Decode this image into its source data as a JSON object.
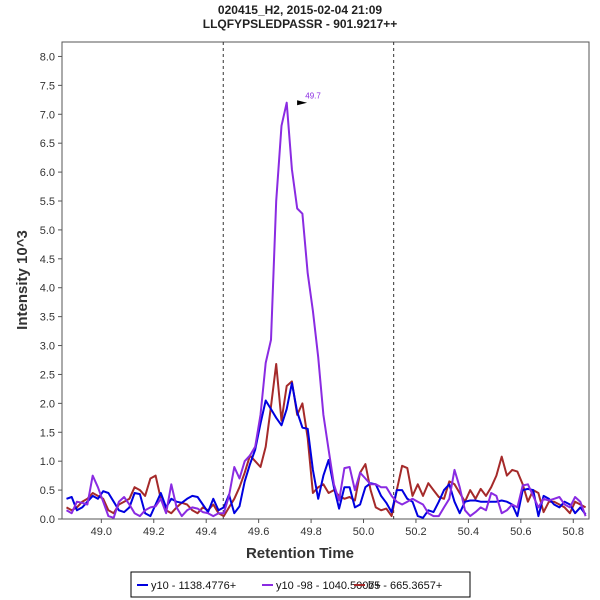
{
  "chart_data": {
    "type": "line",
    "title": "020415_H2, 2015-02-04 21:09",
    "subtitle": "LLQFYPSLEDPASSR - 901.9217++",
    "xlabel": "Retention Time",
    "ylabel": "Intensity 10^3",
    "xlim": [
      48.85,
      50.86
    ],
    "ylim": [
      0,
      8.25
    ],
    "x_ticks": [
      "49.0",
      "49.2",
      "49.4",
      "49.6",
      "49.8",
      "50.0",
      "50.2",
      "50.4",
      "50.6",
      "50.8"
    ],
    "y_ticks": [
      "0.0",
      "0.5",
      "1.0",
      "1.5",
      "2.0",
      "2.5",
      "3.0",
      "3.5",
      "4.0",
      "4.5",
      "5.0",
      "5.5",
      "6.0",
      "6.5",
      "7.0",
      "7.5",
      "8.0"
    ],
    "boundaries": [
      49.465,
      50.115
    ],
    "grid": false,
    "legend_position": "bottom",
    "peak_annotation": {
      "label": "49.7",
      "x": 49.8,
      "y": 7.2,
      "color": "#8a2be2"
    },
    "series": [
      {
        "name": "y10 - 1138.4776+",
        "color": "#0000e0",
        "x": [
          48.867,
          48.887,
          48.907,
          48.927,
          48.947,
          48.967,
          48.987,
          49.007,
          49.027,
          49.047,
          49.067,
          49.087,
          49.107,
          49.127,
          49.147,
          49.167,
          49.187,
          49.207,
          49.227,
          49.247,
          49.267,
          49.287,
          49.307,
          49.327,
          49.347,
          49.367,
          49.387,
          49.407,
          49.427,
          49.447,
          49.467,
          49.487,
          49.507,
          49.527,
          49.547,
          49.567,
          49.587,
          49.607,
          49.627,
          49.647,
          49.667,
          49.687,
          49.707,
          49.727,
          49.747,
          49.767,
          49.787,
          49.807,
          49.827,
          49.847,
          49.867,
          49.887,
          49.907,
          49.927,
          49.947,
          49.967,
          49.987,
          50.007,
          50.027,
          50.047,
          50.067,
          50.087,
          50.107,
          50.127,
          50.147,
          50.167,
          50.187,
          50.207,
          50.227,
          50.247,
          50.267,
          50.287,
          50.307,
          50.327,
          50.347,
          50.367,
          50.387,
          50.407,
          50.427,
          50.447,
          50.467,
          50.487,
          50.507,
          50.527,
          50.547,
          50.567,
          50.587,
          50.607,
          50.627,
          50.647,
          50.667,
          50.687,
          50.707,
          50.727,
          50.747,
          50.767,
          50.787,
          50.807,
          50.827,
          50.847
        ],
        "values": [
          0.35,
          0.38,
          0.15,
          0.2,
          0.3,
          0.4,
          0.35,
          0.48,
          0.45,
          0.3,
          0.15,
          0.12,
          0.2,
          0.45,
          0.43,
          0.1,
          0.05,
          0.25,
          0.45,
          0.2,
          0.35,
          0.3,
          0.28,
          0.35,
          0.4,
          0.38,
          0.25,
          0.12,
          0.35,
          0.15,
          0.2,
          0.42,
          0.1,
          0.22,
          0.65,
          0.95,
          1.2,
          1.65,
          2.05,
          1.9,
          1.75,
          1.62,
          1.9,
          2.35,
          1.85,
          1.58,
          1.56,
          0.85,
          0.35,
          0.75,
          1.02,
          0.55,
          0.18,
          0.55,
          0.55,
          0.2,
          0.25,
          0.55,
          0.62,
          0.6,
          0.4,
          0.28,
          0.12,
          0.5,
          0.5,
          0.35,
          0.3,
          0.05,
          0.02,
          0.15,
          0.12,
          0.3,
          0.5,
          0.6,
          0.3,
          0.1,
          0.3,
          0.32,
          0.32,
          0.3,
          0.3,
          0.3,
          0.3,
          0.32,
          0.3,
          0.25,
          0.05,
          0.5,
          0.52,
          0.5,
          0.05,
          0.4,
          0.35,
          0.25,
          0.2,
          0.3,
          0.25,
          0.1,
          0.2,
          0.08
        ]
      },
      {
        "name": "y10 -98 - 1040.5007+",
        "color": "#8a2be2",
        "x": [
          48.867,
          48.887,
          48.907,
          48.927,
          48.947,
          48.967,
          48.987,
          49.007,
          49.027,
          49.047,
          49.067,
          49.087,
          49.107,
          49.127,
          49.147,
          49.167,
          49.187,
          49.207,
          49.227,
          49.247,
          49.267,
          49.287,
          49.307,
          49.327,
          49.347,
          49.367,
          49.387,
          49.407,
          49.427,
          49.447,
          49.467,
          49.487,
          49.507,
          49.527,
          49.547,
          49.567,
          49.587,
          49.607,
          49.627,
          49.647,
          49.667,
          49.687,
          49.707,
          49.727,
          49.747,
          49.767,
          49.787,
          49.807,
          49.827,
          49.847,
          49.867,
          49.887,
          49.907,
          49.927,
          49.947,
          49.967,
          49.987,
          50.007,
          50.027,
          50.047,
          50.067,
          50.087,
          50.107,
          50.127,
          50.147,
          50.167,
          50.187,
          50.207,
          50.227,
          50.247,
          50.267,
          50.287,
          50.307,
          50.327,
          50.347,
          50.367,
          50.387,
          50.407,
          50.427,
          50.447,
          50.467,
          50.487,
          50.507,
          50.527,
          50.547,
          50.567,
          50.587,
          50.607,
          50.627,
          50.647,
          50.667,
          50.687,
          50.707,
          50.727,
          50.747,
          50.767,
          50.787,
          50.807,
          50.827,
          50.847
        ],
        "values": [
          0.15,
          0.1,
          0.3,
          0.28,
          0.25,
          0.75,
          0.55,
          0.3,
          0.05,
          0.02,
          0.3,
          0.38,
          0.25,
          0.1,
          0.05,
          0.15,
          0.2,
          0.22,
          0.35,
          0.1,
          0.6,
          0.2,
          0.05,
          0.15,
          0.2,
          0.18,
          0.12,
          0.1,
          0.05,
          0.1,
          0.1,
          0.4,
          0.9,
          0.7,
          1.0,
          1.1,
          1.25,
          1.8,
          2.7,
          3.1,
          5.5,
          6.8,
          7.2,
          6.05,
          5.37,
          5.28,
          4.25,
          3.6,
          2.8,
          1.8,
          1.2,
          0.6,
          0.32,
          0.88,
          0.9,
          0.5,
          0.8,
          0.7,
          0.6,
          0.6,
          0.55,
          0.55,
          0.4,
          0.3,
          0.25,
          0.3,
          0.35,
          0.3,
          0.25,
          0.1,
          0.05,
          0.05,
          0.2,
          0.35,
          0.85,
          0.55,
          0.15,
          0.05,
          0.12,
          0.2,
          0.15,
          0.45,
          0.4,
          0.1,
          0.15,
          0.25,
          0.2,
          0.58,
          0.6,
          0.4,
          0.2,
          0.35,
          0.32,
          0.35,
          0.38,
          0.25,
          0.2,
          0.38,
          0.3,
          0.05
        ]
      },
      {
        "name": "b5 - 665.3657+",
        "color": "#a52a2a",
        "x": [
          48.867,
          48.887,
          48.907,
          48.927,
          48.947,
          48.967,
          48.987,
          49.007,
          49.027,
          49.047,
          49.067,
          49.087,
          49.107,
          49.127,
          49.147,
          49.167,
          49.187,
          49.207,
          49.227,
          49.247,
          49.267,
          49.287,
          49.307,
          49.327,
          49.347,
          49.367,
          49.387,
          49.407,
          49.427,
          49.447,
          49.467,
          49.487,
          49.507,
          49.527,
          49.547,
          49.567,
          49.587,
          49.607,
          49.627,
          49.647,
          49.667,
          49.687,
          49.707,
          49.727,
          49.747,
          49.767,
          49.787,
          49.807,
          49.827,
          49.847,
          49.867,
          49.887,
          49.907,
          49.927,
          49.947,
          49.967,
          49.987,
          50.007,
          50.027,
          50.047,
          50.067,
          50.087,
          50.107,
          50.127,
          50.147,
          50.167,
          50.187,
          50.207,
          50.227,
          50.247,
          50.267,
          50.287,
          50.307,
          50.327,
          50.347,
          50.367,
          50.387,
          50.407,
          50.427,
          50.447,
          50.467,
          50.487,
          50.507,
          50.527,
          50.547,
          50.567,
          50.587,
          50.607,
          50.627,
          50.647,
          50.667,
          50.687,
          50.707,
          50.727,
          50.747,
          50.767,
          50.787,
          50.807,
          50.827,
          50.847
        ],
        "values": [
          0.2,
          0.15,
          0.2,
          0.3,
          0.35,
          0.45,
          0.4,
          0.35,
          0.15,
          0.1,
          0.25,
          0.3,
          0.35,
          0.55,
          0.5,
          0.4,
          0.7,
          0.75,
          0.35,
          0.15,
          0.1,
          0.2,
          0.28,
          0.25,
          0.15,
          0.1,
          0.2,
          0.15,
          0.25,
          0.1,
          0.05,
          0.2,
          0.35,
          0.55,
          0.8,
          1.1,
          1.0,
          0.9,
          1.25,
          1.95,
          2.68,
          1.7,
          2.3,
          2.38,
          1.8,
          2.0,
          1.4,
          0.45,
          0.55,
          0.6,
          0.45,
          0.5,
          0.4,
          0.35,
          0.38,
          0.32,
          0.8,
          0.95,
          0.5,
          0.2,
          0.15,
          0.18,
          0.05,
          0.5,
          0.92,
          0.88,
          0.4,
          0.6,
          0.4,
          0.62,
          0.5,
          0.38,
          0.35,
          0.65,
          0.6,
          0.45,
          0.3,
          0.5,
          0.35,
          0.52,
          0.4,
          0.55,
          0.75,
          1.08,
          0.75,
          0.85,
          0.82,
          0.6,
          0.3,
          0.5,
          0.45,
          0.12,
          0.3,
          0.3,
          0.25,
          0.2,
          0.1,
          0.3,
          0.25,
          0.2
        ]
      }
    ]
  }
}
